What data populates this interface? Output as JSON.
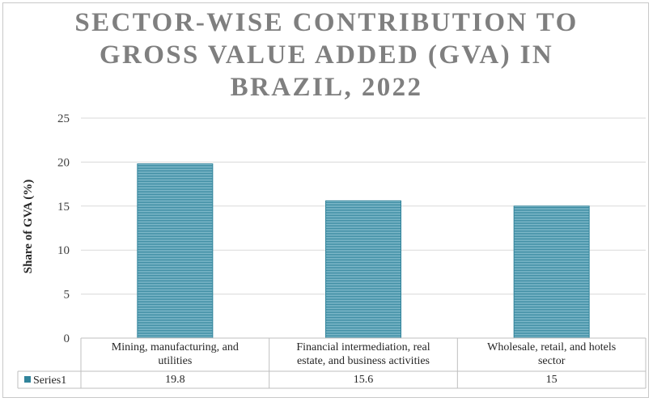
{
  "chart_data": {
    "type": "bar",
    "title_lines": [
      "SECTOR-WISE CONTRIBUTION TO",
      "GROSS VALUE ADDED (GVA) IN",
      "BRAZIL, 2022"
    ],
    "ylabel": "Share of GVA (%)",
    "ylim": [
      0,
      25
    ],
    "yticks": [
      0,
      5,
      10,
      15,
      20,
      25
    ],
    "categories": [
      [
        "Mining, manufacturing, and",
        "utilities"
      ],
      [
        "Financial intermediation, real",
        "estate, and business activities"
      ],
      [
        "Wholesale, retail, and hotels",
        "sector"
      ]
    ],
    "series": [
      {
        "name": "Series1",
        "values": [
          19.8,
          15.6,
          15
        ],
        "value_labels": [
          "19.8",
          "15.6",
          "15"
        ]
      }
    ],
    "grid": true,
    "legend": "data-table",
    "bar_color": "#31849b"
  }
}
